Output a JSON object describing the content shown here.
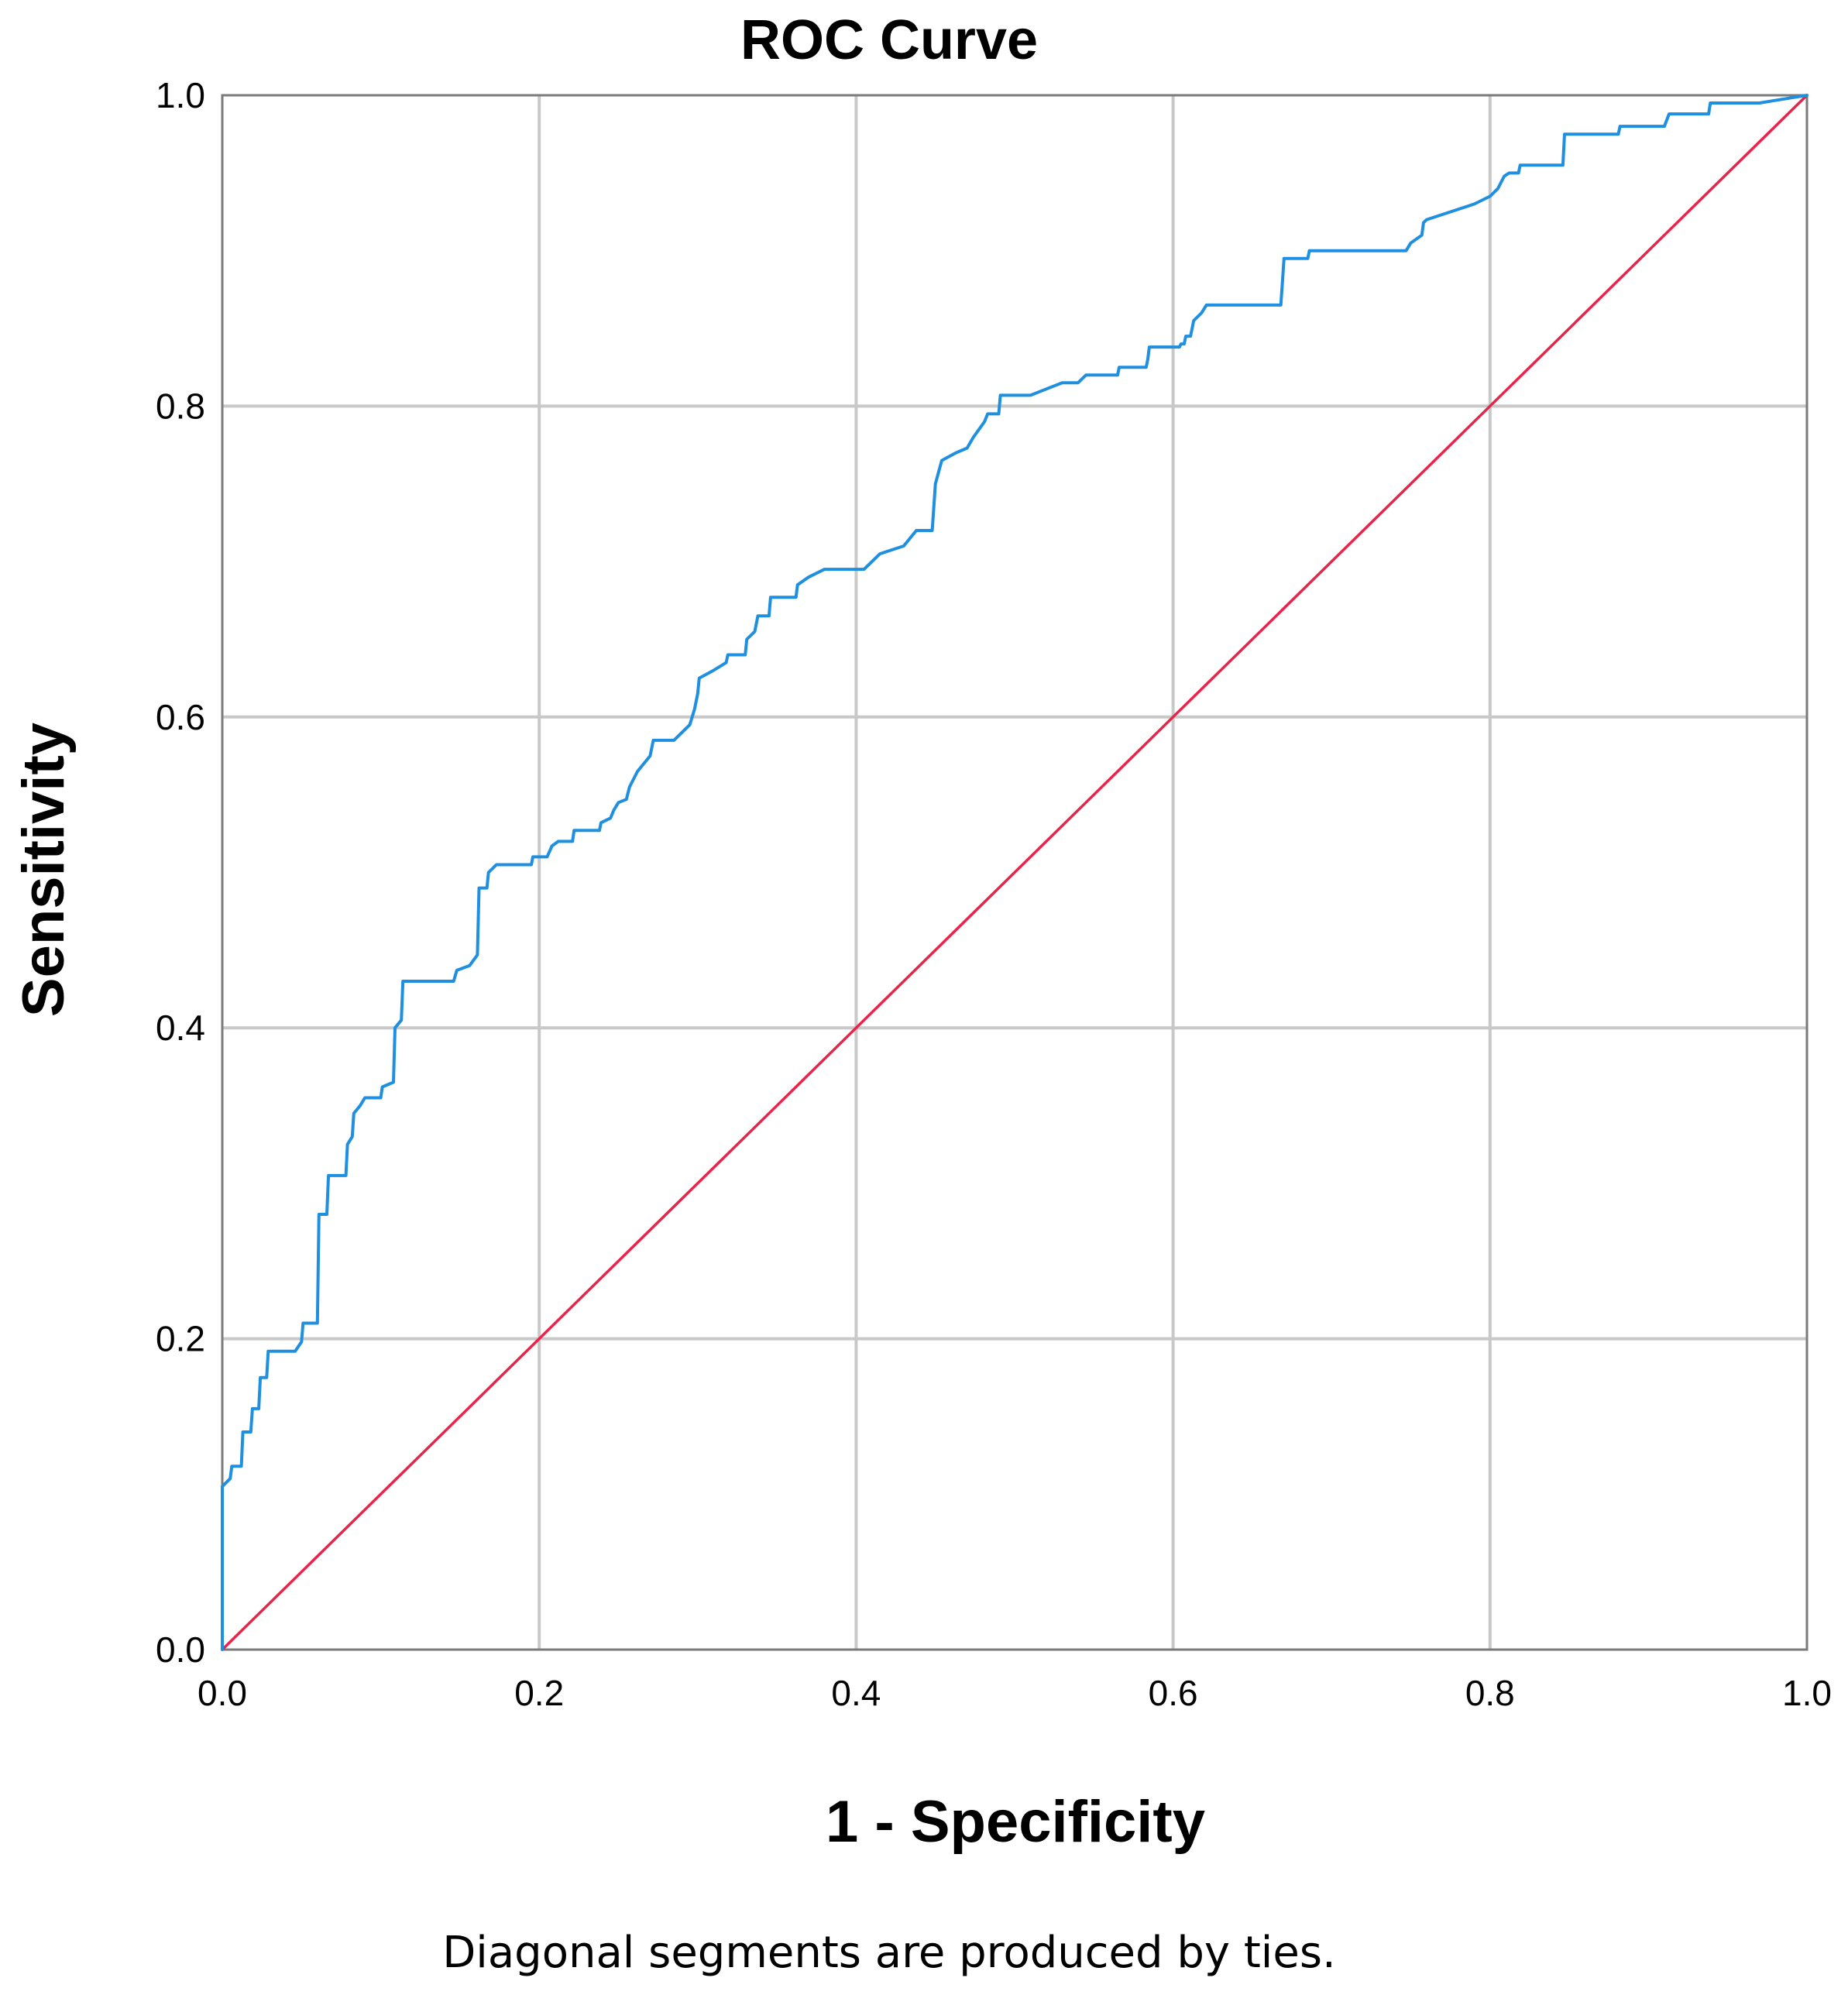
{
  "chart_data": {
    "type": "line",
    "title": "ROC Curve",
    "xlabel": "1 - Specificity",
    "ylabel": "Sensitivity",
    "footnote": "Diagonal segments are produced by ties.",
    "xlim": [
      0,
      1
    ],
    "ylim": [
      0,
      1
    ],
    "x_ticks": [
      "0.0",
      "0.2",
      "0.4",
      "0.6",
      "0.8",
      "1.0"
    ],
    "y_ticks": [
      "0.0",
      "0.2",
      "0.4",
      "0.6",
      "0.8",
      "1.0"
    ],
    "grid": true,
    "colors": {
      "roc": "#1f8fe0",
      "reference": "#e8244a",
      "grid": "#c8c8c8",
      "axis": "#7a7a7a"
    },
    "series": [
      {
        "values": [
          [
            0.0,
            0.0
          ],
          [
            0.0,
            0.105
          ],
          [
            0.005,
            0.11
          ],
          [
            0.006,
            0.118
          ],
          [
            0.012,
            0.118
          ],
          [
            0.013,
            0.14
          ],
          [
            0.018,
            0.14
          ],
          [
            0.019,
            0.155
          ],
          [
            0.023,
            0.155
          ],
          [
            0.024,
            0.175
          ],
          [
            0.028,
            0.175
          ],
          [
            0.029,
            0.192
          ],
          [
            0.046,
            0.192
          ],
          [
            0.05,
            0.198
          ],
          [
            0.051,
            0.21
          ],
          [
            0.06,
            0.21
          ],
          [
            0.061,
            0.28
          ],
          [
            0.066,
            0.28
          ],
          [
            0.067,
            0.305
          ],
          [
            0.078,
            0.305
          ],
          [
            0.079,
            0.325
          ],
          [
            0.082,
            0.33
          ],
          [
            0.083,
            0.345
          ],
          [
            0.087,
            0.35
          ],
          [
            0.09,
            0.355
          ],
          [
            0.1,
            0.355
          ],
          [
            0.101,
            0.362
          ],
          [
            0.108,
            0.365
          ],
          [
            0.109,
            0.4
          ],
          [
            0.113,
            0.405
          ],
          [
            0.114,
            0.43
          ],
          [
            0.146,
            0.43
          ],
          [
            0.148,
            0.437
          ],
          [
            0.156,
            0.44
          ],
          [
            0.161,
            0.447
          ],
          [
            0.162,
            0.49
          ],
          [
            0.167,
            0.49
          ],
          [
            0.168,
            0.5
          ],
          [
            0.173,
            0.505
          ],
          [
            0.195,
            0.505
          ],
          [
            0.196,
            0.51
          ],
          [
            0.205,
            0.51
          ],
          [
            0.208,
            0.517
          ],
          [
            0.212,
            0.52
          ],
          [
            0.221,
            0.52
          ],
          [
            0.222,
            0.527
          ],
          [
            0.238,
            0.527
          ],
          [
            0.239,
            0.532
          ],
          [
            0.245,
            0.535
          ],
          [
            0.247,
            0.54
          ],
          [
            0.25,
            0.545
          ],
          [
            0.255,
            0.547
          ],
          [
            0.257,
            0.555
          ],
          [
            0.262,
            0.565
          ],
          [
            0.27,
            0.575
          ],
          [
            0.272,
            0.585
          ],
          [
            0.285,
            0.585
          ],
          [
            0.295,
            0.595
          ],
          [
            0.298,
            0.605
          ],
          [
            0.3,
            0.615
          ],
          [
            0.301,
            0.625
          ],
          [
            0.31,
            0.63
          ],
          [
            0.318,
            0.635
          ],
          [
            0.319,
            0.64
          ],
          [
            0.33,
            0.64
          ],
          [
            0.331,
            0.65
          ],
          [
            0.336,
            0.655
          ],
          [
            0.338,
            0.665
          ],
          [
            0.345,
            0.665
          ],
          [
            0.346,
            0.677
          ],
          [
            0.362,
            0.677
          ],
          [
            0.363,
            0.685
          ],
          [
            0.37,
            0.69
          ],
          [
            0.38,
            0.695
          ],
          [
            0.405,
            0.695
          ],
          [
            0.415,
            0.705
          ],
          [
            0.43,
            0.71
          ],
          [
            0.438,
            0.72
          ],
          [
            0.448,
            0.72
          ],
          [
            0.45,
            0.75
          ],
          [
            0.454,
            0.765
          ],
          [
            0.463,
            0.77
          ],
          [
            0.47,
            0.773
          ],
          [
            0.474,
            0.78
          ],
          [
            0.481,
            0.79
          ],
          [
            0.483,
            0.795
          ],
          [
            0.49,
            0.795
          ],
          [
            0.491,
            0.807
          ],
          [
            0.51,
            0.807
          ],
          [
            0.52,
            0.811
          ],
          [
            0.53,
            0.815
          ],
          [
            0.54,
            0.815
          ],
          [
            0.545,
            0.82
          ],
          [
            0.565,
            0.82
          ],
          [
            0.566,
            0.825
          ],
          [
            0.583,
            0.825
          ],
          [
            0.584,
            0.83
          ],
          [
            0.585,
            0.838
          ],
          [
            0.604,
            0.838
          ],
          [
            0.605,
            0.84
          ],
          [
            0.607,
            0.84
          ],
          [
            0.608,
            0.845
          ],
          [
            0.611,
            0.845
          ],
          [
            0.612,
            0.85
          ],
          [
            0.613,
            0.855
          ],
          [
            0.618,
            0.86
          ],
          [
            0.621,
            0.865
          ],
          [
            0.668,
            0.865
          ],
          [
            0.669,
            0.88
          ],
          [
            0.67,
            0.895
          ],
          [
            0.685,
            0.895
          ],
          [
            0.686,
            0.9
          ],
          [
            0.747,
            0.9
          ],
          [
            0.75,
            0.905
          ],
          [
            0.757,
            0.91
          ],
          [
            0.758,
            0.918
          ],
          [
            0.76,
            0.92
          ],
          [
            0.79,
            0.93
          ],
          [
            0.8,
            0.935
          ],
          [
            0.805,
            0.94
          ],
          [
            0.809,
            0.948
          ],
          [
            0.812,
            0.95
          ],
          [
            0.818,
            0.95
          ],
          [
            0.819,
            0.955
          ],
          [
            0.823,
            0.955
          ],
          [
            0.846,
            0.955
          ],
          [
            0.847,
            0.975
          ],
          [
            0.86,
            0.975
          ],
          [
            0.881,
            0.975
          ],
          [
            0.882,
            0.98
          ],
          [
            0.91,
            0.98
          ],
          [
            0.913,
            0.988
          ],
          [
            0.938,
            0.988
          ],
          [
            0.939,
            0.995
          ],
          [
            0.97,
            0.995
          ],
          [
            1.0,
            1.0
          ]
        ]
      },
      {
        "values": [
          [
            0.0,
            0.0
          ],
          [
            1.0,
            1.0
          ]
        ]
      }
    ]
  }
}
